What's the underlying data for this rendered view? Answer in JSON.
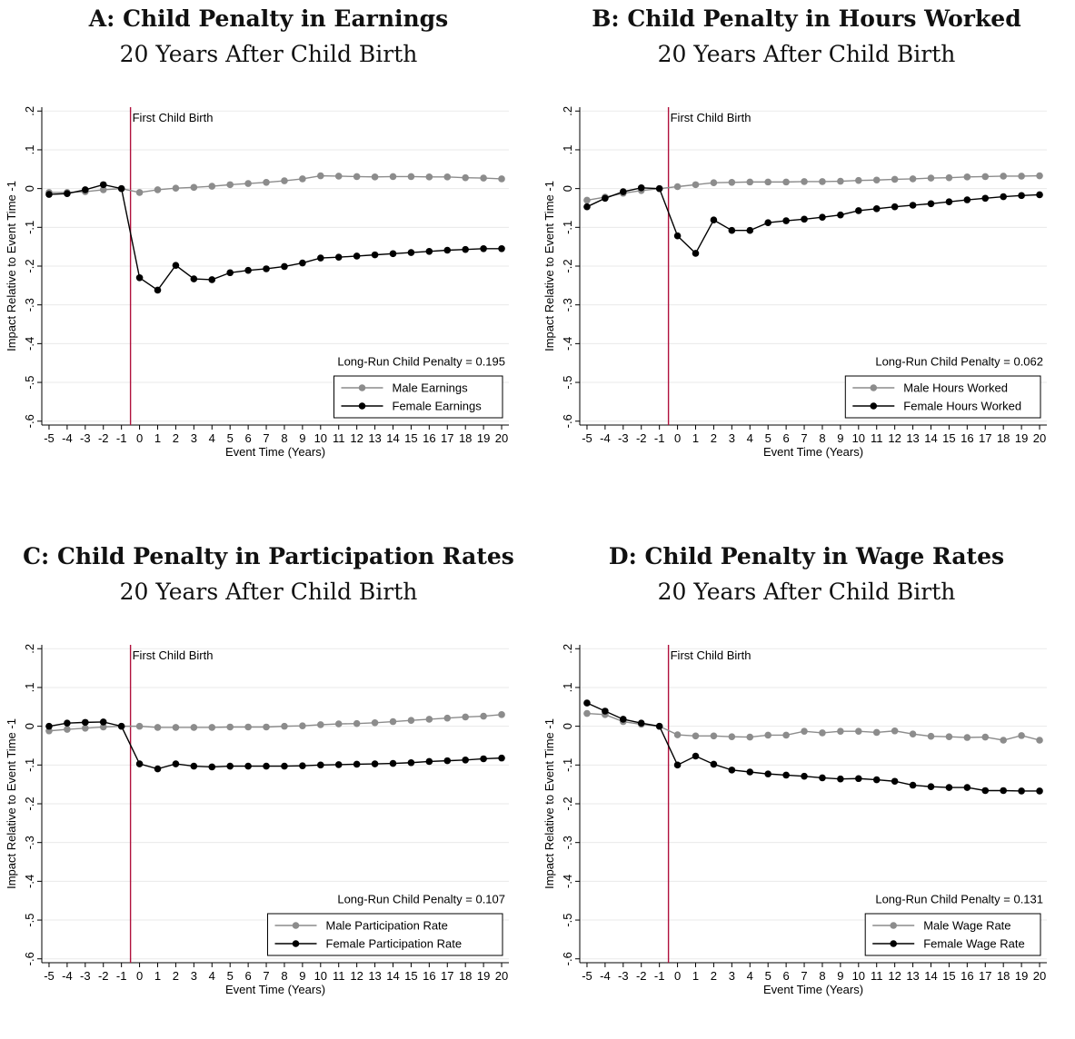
{
  "chart_data": [
    {
      "type": "line",
      "title": "A: Child Penalty in Earnings",
      "subtitle": "20 Years After Child Birth",
      "xlabel": "Event Time (Years)",
      "ylabel": "Impact Relative to Event Time -1",
      "x": [
        -5,
        -4,
        -3,
        -2,
        -1,
        0,
        1,
        2,
        3,
        4,
        5,
        6,
        7,
        8,
        9,
        10,
        11,
        12,
        13,
        14,
        15,
        16,
        17,
        18,
        19,
        20
      ],
      "xticks": [
        "-5",
        "-4",
        "-3",
        "-2",
        "-1",
        "0",
        "1",
        "2",
        "3",
        "4",
        "5",
        "6",
        "7",
        "8",
        "9",
        "10",
        "11",
        "12",
        "13",
        "14",
        "15",
        "16",
        "17",
        "18",
        "19",
        "20"
      ],
      "ylim": [
        -0.6,
        0.2
      ],
      "yticks": [
        ".2",
        ".1",
        "0",
        "-.1",
        "-.2",
        "-.3",
        "-.4",
        "-.5",
        "-.6"
      ],
      "ytick_values": [
        0.2,
        0.1,
        0,
        -0.1,
        -0.2,
        -0.3,
        -0.4,
        -0.5,
        -0.6
      ],
      "event_line_x": -0.5,
      "event_line_label": "First Child Birth",
      "annotation": "Long-Run Child Penalty = 0.195",
      "grid": true,
      "legend_position": "bottom-right",
      "series": [
        {
          "name": "Male Earnings",
          "color": "#8c8c8c",
          "values": [
            -0.01,
            -0.01,
            -0.008,
            -0.003,
            0,
            -0.01,
            -0.003,
            0.001,
            0.003,
            0.006,
            0.01,
            0.013,
            0.016,
            0.02,
            0.025,
            0.033,
            0.032,
            0.031,
            0.03,
            0.031,
            0.031,
            0.03,
            0.03,
            0.028,
            0.027,
            0.025
          ]
        },
        {
          "name": "Female Earnings",
          "color": "#000000",
          "values": [
            -0.015,
            -0.013,
            -0.003,
            0.01,
            0,
            -0.23,
            -0.262,
            -0.198,
            -0.233,
            -0.235,
            -0.217,
            -0.211,
            -0.207,
            -0.201,
            -0.192,
            -0.179,
            -0.177,
            -0.174,
            -0.171,
            -0.168,
            -0.165,
            -0.162,
            -0.159,
            -0.157,
            -0.155,
            -0.155
          ]
        }
      ]
    },
    {
      "type": "line",
      "title": "B: Child Penalty in Hours Worked",
      "subtitle": "20 Years After Child Birth",
      "xlabel": "Event Time (Years)",
      "ylabel": "Impact Relative to Event Time -1",
      "x": [
        -5,
        -4,
        -3,
        -2,
        -1,
        0,
        1,
        2,
        3,
        4,
        5,
        6,
        7,
        8,
        9,
        10,
        11,
        12,
        13,
        14,
        15,
        16,
        17,
        18,
        19,
        20
      ],
      "xticks": [
        "-5",
        "-4",
        "-3",
        "-2",
        "-1",
        "0",
        "1",
        "2",
        "3",
        "4",
        "5",
        "6",
        "7",
        "8",
        "9",
        "10",
        "11",
        "12",
        "13",
        "14",
        "15",
        "16",
        "17",
        "18",
        "19",
        "20"
      ],
      "ylim": [
        -0.6,
        0.2
      ],
      "yticks": [
        ".2",
        ".1",
        "0",
        "-.1",
        "-.2",
        "-.3",
        "-.4",
        "-.5",
        "-.6"
      ],
      "ytick_values": [
        0.2,
        0.1,
        0,
        -0.1,
        -0.2,
        -0.3,
        -0.4,
        -0.5,
        -0.6
      ],
      "event_line_x": -0.5,
      "event_line_label": "First Child Birth",
      "annotation": "Long-Run Child Penalty = 0.062",
      "grid": true,
      "legend_position": "bottom-right",
      "series": [
        {
          "name": "Male Hours Worked",
          "color": "#8c8c8c",
          "values": [
            -0.03,
            -0.022,
            -0.012,
            -0.005,
            0,
            0.005,
            0.01,
            0.015,
            0.016,
            0.017,
            0.017,
            0.017,
            0.018,
            0.018,
            0.019,
            0.021,
            0.022,
            0.024,
            0.025,
            0.027,
            0.028,
            0.03,
            0.031,
            0.032,
            0.032,
            0.033
          ]
        },
        {
          "name": "Female Hours Worked",
          "color": "#000000",
          "values": [
            -0.047,
            -0.025,
            -0.008,
            0.002,
            0,
            -0.122,
            -0.167,
            -0.081,
            -0.108,
            -0.108,
            -0.088,
            -0.083,
            -0.079,
            -0.074,
            -0.068,
            -0.057,
            -0.052,
            -0.047,
            -0.043,
            -0.039,
            -0.034,
            -0.029,
            -0.025,
            -0.021,
            -0.018,
            -0.016
          ]
        }
      ]
    },
    {
      "type": "line",
      "title": "C: Child Penalty in Participation Rates",
      "subtitle": "20 Years After Child Birth",
      "xlabel": "Event Time (Years)",
      "ylabel": "Impact Relative to Event Time -1",
      "x": [
        -5,
        -4,
        -3,
        -2,
        -1,
        0,
        1,
        2,
        3,
        4,
        5,
        6,
        7,
        8,
        9,
        10,
        11,
        12,
        13,
        14,
        15,
        16,
        17,
        18,
        19,
        20
      ],
      "xticks": [
        "-5",
        "-4",
        "-3",
        "-2",
        "-1",
        "0",
        "1",
        "2",
        "3",
        "4",
        "5",
        "6",
        "7",
        "8",
        "9",
        "10",
        "11",
        "12",
        "13",
        "14",
        "15",
        "16",
        "17",
        "18",
        "19",
        "20"
      ],
      "ylim": [
        -0.6,
        0.2
      ],
      "yticks": [
        ".2",
        ".1",
        "0",
        "-.1",
        "-.2",
        "-.3",
        "-.4",
        "-.5",
        "-.6"
      ],
      "ytick_values": [
        0.2,
        0.1,
        0,
        -0.1,
        -0.2,
        -0.3,
        -0.4,
        -0.5,
        -0.6
      ],
      "event_line_x": -0.5,
      "event_line_label": "First Child Birth",
      "annotation": "Long-Run Child Penalty = 0.107",
      "grid": true,
      "legend_position": "bottom-right",
      "series": [
        {
          "name": "Male Participation Rate",
          "color": "#8c8c8c",
          "values": [
            -0.012,
            -0.008,
            -0.005,
            -0.002,
            0,
            0,
            -0.003,
            -0.003,
            -0.003,
            -0.003,
            -0.002,
            -0.002,
            -0.002,
            0,
            0.001,
            0.004,
            0.006,
            0.007,
            0.009,
            0.012,
            0.015,
            0.018,
            0.021,
            0.024,
            0.026,
            0.03
          ]
        },
        {
          "name": "Female Participation Rate",
          "color": "#000000",
          "values": [
            0,
            0.008,
            0.01,
            0.011,
            0,
            -0.097,
            -0.11,
            -0.097,
            -0.103,
            -0.105,
            -0.103,
            -0.103,
            -0.103,
            -0.103,
            -0.102,
            -0.1,
            -0.099,
            -0.098,
            -0.097,
            -0.096,
            -0.094,
            -0.091,
            -0.089,
            -0.087,
            -0.084,
            -0.082
          ]
        }
      ]
    },
    {
      "type": "line",
      "title": "D: Child Penalty in Wage Rates",
      "subtitle": "20 Years After Child Birth",
      "xlabel": "Event Time (Years)",
      "ylabel": "Impact Relative to Event Time -1",
      "x": [
        -5,
        -4,
        -3,
        -2,
        -1,
        0,
        1,
        2,
        3,
        4,
        5,
        6,
        7,
        8,
        9,
        10,
        11,
        12,
        13,
        14,
        15,
        16,
        17,
        18,
        19,
        20
      ],
      "xticks": [
        "-5",
        "-4",
        "-3",
        "-2",
        "-1",
        "0",
        "1",
        "2",
        "3",
        "4",
        "5",
        "6",
        "7",
        "8",
        "9",
        "10",
        "11",
        "12",
        "13",
        "14",
        "15",
        "16",
        "17",
        "18",
        "19",
        "20"
      ],
      "ylim": [
        -0.6,
        0.2
      ],
      "yticks": [
        ".2",
        ".1",
        "0",
        "-.1",
        "-.2",
        "-.3",
        "-.4",
        "-.5",
        "-.6"
      ],
      "ytick_values": [
        0.2,
        0.1,
        0,
        -0.1,
        -0.2,
        -0.3,
        -0.4,
        -0.5,
        -0.6
      ],
      "event_line_x": -0.5,
      "event_line_label": "First Child Birth",
      "annotation": "Long-Run Child Penalty = 0.131",
      "grid": true,
      "legend_position": "bottom-right",
      "series": [
        {
          "name": "Male Wage Rate",
          "color": "#8c8c8c",
          "values": [
            0.033,
            0.03,
            0.012,
            0.005,
            0,
            -0.022,
            -0.025,
            -0.025,
            -0.027,
            -0.028,
            -0.023,
            -0.023,
            -0.013,
            -0.017,
            -0.013,
            -0.013,
            -0.016,
            -0.012,
            -0.02,
            -0.026,
            -0.027,
            -0.029,
            -0.028,
            -0.036,
            -0.024,
            -0.036
          ]
        },
        {
          "name": "Female Wage Rate",
          "color": "#000000",
          "values": [
            0.06,
            0.039,
            0.018,
            0.008,
            0,
            -0.1,
            -0.077,
            -0.098,
            -0.113,
            -0.118,
            -0.123,
            -0.126,
            -0.129,
            -0.133,
            -0.136,
            -0.135,
            -0.138,
            -0.142,
            -0.152,
            -0.156,
            -0.158,
            -0.158,
            -0.166,
            -0.166,
            -0.167,
            -0.167
          ]
        }
      ]
    }
  ]
}
